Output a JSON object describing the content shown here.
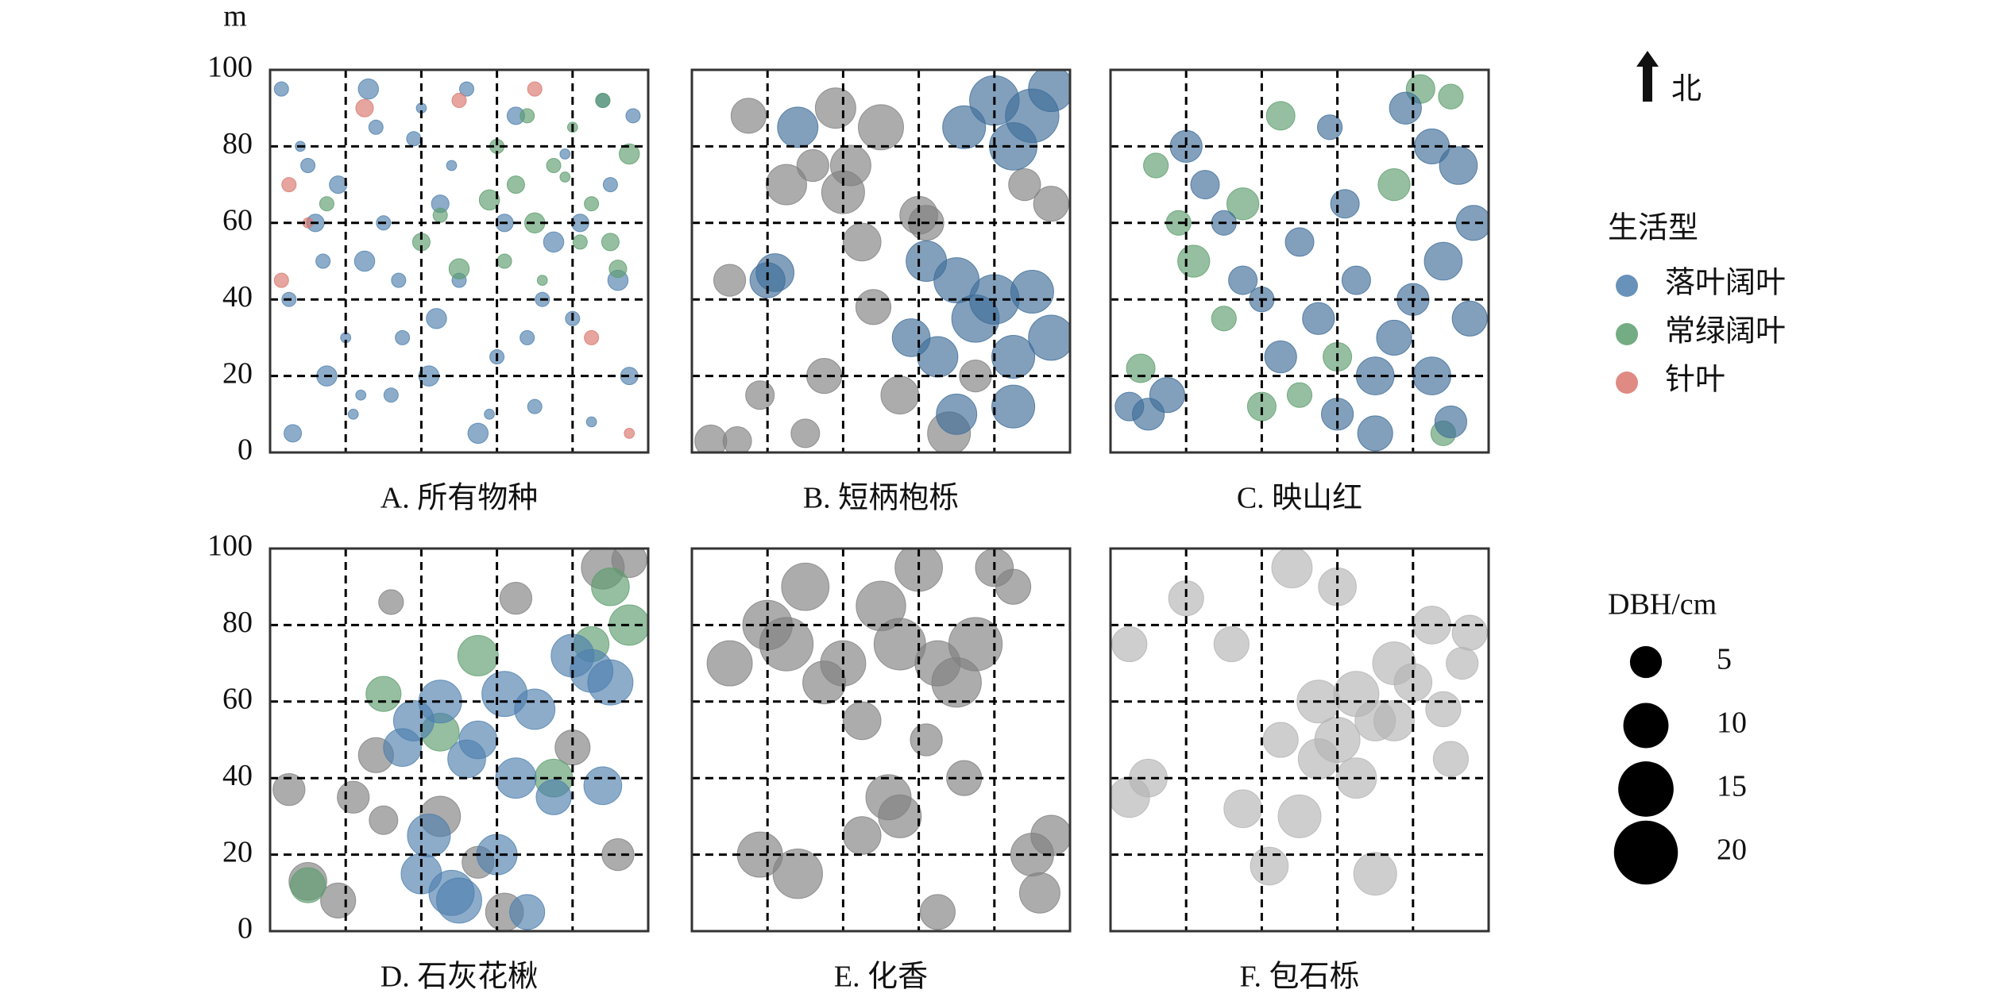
{
  "chart_data": [
    {
      "type": "scatter",
      "title": "A. 所有物种",
      "ylabel": "m",
      "xlim": [
        0,
        100
      ],
      "ylim": [
        0,
        100
      ],
      "xticks": [
        0,
        20,
        40,
        60,
        80,
        100
      ],
      "yticks": [
        0,
        20,
        40,
        60,
        80,
        100
      ],
      "ytick_labels": true,
      "grid": true,
      "series": [
        {
          "name": "落叶阔叶",
          "color": "#4e7fae",
          "x": [
            3,
            8,
            12,
            5,
            15,
            22,
            28,
            18,
            25,
            35,
            40,
            32,
            45,
            50,
            55,
            48,
            60,
            65,
            70,
            75,
            80,
            85,
            90,
            95,
            92,
            88,
            78,
            72,
            62,
            52,
            42,
            30,
            20,
            10,
            6,
            14,
            26,
            38,
            58,
            68,
            82,
            96,
            44,
            34,
            24
          ],
          "y": [
            95,
            80,
            60,
            40,
            20,
            10,
            85,
            70,
            50,
            30,
            90,
            15,
            65,
            45,
            5,
            75,
            25,
            88,
            12,
            55,
            35,
            8,
            70,
            20,
            45,
            92,
            78,
            40,
            60,
            95,
            20,
            60,
            30,
            75,
            5,
            50,
            95,
            82,
            10,
            30,
            60,
            88,
            35,
            45,
            15
          ],
          "size": [
            1,
            0.5,
            1.5,
            1,
            2,
            0.5,
            1,
            1.5,
            2,
            1,
            0.5,
            1,
            1.5,
            1,
            2,
            0.5,
            1,
            1.5,
            1,
            2,
            1,
            0.5,
            1,
            1.5,
            2,
            1,
            0.5,
            1,
            1.5,
            1,
            2,
            1,
            0.5,
            1,
            1.5,
            1,
            2,
            1,
            0.5,
            1,
            1.5,
            1,
            2,
            1,
            0.5
          ]
        },
        {
          "name": "常绿阔叶",
          "color": "#5c9d6d",
          "x": [
            60,
            65,
            70,
            75,
            80,
            85,
            90,
            95,
            62,
            72,
            82,
            92,
            58,
            68,
            78,
            88,
            40,
            45,
            50,
            15
          ],
          "y": [
            80,
            70,
            60,
            75,
            85,
            65,
            55,
            78,
            50,
            45,
            55,
            48,
            66,
            88,
            72,
            92,
            55,
            62,
            48,
            65
          ],
          "size": [
            1,
            1.5,
            2,
            1,
            0.5,
            1,
            1.5,
            2,
            1,
            0.5,
            1,
            1.5,
            2,
            1,
            0.5,
            1,
            1.5,
            1,
            2,
            1
          ]
        },
        {
          "name": "针叶",
          "color": "#d9756c",
          "x": [
            5,
            10,
            3,
            25,
            85,
            95,
            50,
            70
          ],
          "y": [
            70,
            60,
            45,
            90,
            30,
            5,
            92,
            95
          ],
          "size": [
            1,
            0.5,
            1,
            1.5,
            1,
            0.5,
            1,
            1
          ]
        }
      ]
    },
    {
      "type": "scatter",
      "title": "B. 短柄枹栎",
      "xlim": [
        0,
        100
      ],
      "ylim": [
        0,
        100
      ],
      "xticks": [
        0,
        20,
        40,
        60,
        80,
        100
      ],
      "yticks": [
        0,
        20,
        40,
        60,
        80,
        100
      ],
      "ytick_labels": false,
      "grid": true,
      "series": [
        {
          "color": "#808080",
          "x": [
            15,
            25,
            32,
            40,
            45,
            50,
            62,
            38,
            10,
            18,
            35,
            55,
            68,
            75,
            48,
            30,
            60,
            5,
            12,
            42,
            95,
            88
          ],
          "y": [
            88,
            70,
            75,
            68,
            55,
            85,
            60,
            90,
            45,
            15,
            20,
            15,
            5,
            20,
            38,
            5,
            62,
            3,
            3,
            75,
            65,
            70
          ],
          "size": [
            6,
            8,
            5,
            9,
            7,
            10,
            6,
            8,
            5,
            4,
            6,
            7,
            9,
            5,
            6,
            4,
            7,
            5,
            4,
            8,
            6,
            5
          ]
        },
        {
          "color": "#3f6d98",
          "x": [
            80,
            90,
            95,
            72,
            85,
            62,
            70,
            80,
            90,
            58,
            65,
            75,
            85,
            95,
            70,
            85,
            22,
            28,
            20
          ],
          "y": [
            92,
            88,
            95,
            85,
            80,
            50,
            45,
            40,
            42,
            30,
            25,
            35,
            25,
            30,
            10,
            12,
            47,
            85,
            45
          ],
          "size": [
            12,
            14,
            10,
            9,
            11,
            8,
            10,
            12,
            9,
            7,
            8,
            11,
            9,
            10,
            8,
            9,
            7,
            8,
            6
          ]
        }
      ]
    },
    {
      "type": "scatter",
      "title": "C. 映山红",
      "xlim": [
        0,
        100
      ],
      "ylim": [
        0,
        100
      ],
      "xticks": [
        0,
        20,
        40,
        60,
        80,
        100
      ],
      "yticks": [
        0,
        20,
        40,
        60,
        80,
        100
      ],
      "ytick_labels": false,
      "grid": true,
      "series": [
        {
          "color": "#5c9d6d",
          "x": [
            82,
            90,
            75,
            50,
            40,
            18,
            22,
            8,
            30,
            60,
            88,
            35,
            45,
            12
          ],
          "y": [
            95,
            93,
            70,
            15,
            12,
            60,
            50,
            22,
            35,
            25,
            5,
            65,
            88,
            75
          ],
          "size": [
            4,
            3,
            5,
            3,
            4,
            3,
            5,
            4,
            3,
            4,
            3,
            5,
            4,
            3
          ]
        },
        {
          "color": "#3f6d98",
          "x": [
            78,
            85,
            92,
            96,
            88,
            80,
            75,
            70,
            60,
            65,
            55,
            50,
            45,
            40,
            25,
            20,
            15,
            10,
            5,
            30,
            35,
            85,
            95,
            90,
            62,
            58,
            70
          ],
          "y": [
            90,
            80,
            75,
            60,
            50,
            40,
            30,
            20,
            10,
            45,
            35,
            55,
            25,
            40,
            70,
            80,
            15,
            10,
            12,
            60,
            45,
            20,
            35,
            8,
            65,
            85,
            5
          ],
          "size": [
            5,
            6,
            7,
            6,
            7,
            5,
            6,
            7,
            5,
            4,
            5,
            4,
            5,
            3,
            4,
            5,
            6,
            5,
            4,
            3,
            4,
            7,
            6,
            5,
            4,
            3,
            6
          ]
        }
      ]
    },
    {
      "type": "scatter",
      "title": "D. 石灰花楸",
      "xlim": [
        0,
        100
      ],
      "ylim": [
        0,
        100
      ],
      "xticks": [
        0,
        20,
        40,
        60,
        80,
        100
      ],
      "yticks": [
        0,
        20,
        40,
        60,
        80,
        100
      ],
      "ytick_labels": true,
      "grid": true,
      "series": [
        {
          "color": "#808080",
          "x": [
            5,
            28,
            22,
            30,
            32,
            65,
            95,
            10,
            18,
            45,
            55,
            80,
            92,
            62,
            88
          ],
          "y": [
            37,
            46,
            35,
            29,
            86,
            87,
            97,
            13,
            8,
            30,
            18,
            48,
            20,
            5,
            95
          ],
          "size": [
            5,
            6,
            5,
            4,
            3,
            5,
            6,
            7,
            6,
            8,
            5,
            6,
            5,
            7,
            9
          ]
        },
        {
          "color": "#5c9d6d",
          "x": [
            30,
            90,
            95,
            85,
            75,
            10,
            55,
            45
          ],
          "y": [
            62,
            90,
            80,
            75,
            40,
            12,
            72,
            52
          ],
          "size": [
            6,
            7,
            8,
            6,
            7,
            6,
            8,
            7
          ]
        },
        {
          "color": "#4e7fae",
          "x": [
            38,
            45,
            55,
            62,
            70,
            80,
            90,
            52,
            65,
            75,
            42,
            48,
            35,
            60,
            68,
            85,
            40,
            50,
            88
          ],
          "y": [
            55,
            60,
            50,
            62,
            58,
            72,
            65,
            45,
            40,
            35,
            25,
            10,
            48,
            20,
            5,
            68,
            15,
            8,
            38
          ],
          "size": [
            8,
            9,
            7,
            10,
            8,
            9,
            10,
            7,
            8,
            6,
            9,
            10,
            7,
            8,
            6,
            9,
            8,
            10,
            7
          ]
        }
      ]
    },
    {
      "type": "scatter",
      "title": "E. 化香",
      "xlim": [
        0,
        100
      ],
      "ylim": [
        0,
        100
      ],
      "xticks": [
        0,
        20,
        40,
        60,
        80,
        100
      ],
      "yticks": [
        0,
        20,
        40,
        60,
        80,
        100
      ],
      "ytick_labels": false,
      "grid": true,
      "series": [
        {
          "color": "#808080",
          "x": [
            10,
            20,
            25,
            30,
            35,
            40,
            50,
            55,
            60,
            65,
            70,
            75,
            85,
            90,
            95,
            45,
            18,
            28,
            62,
            72,
            65,
            80,
            92,
            55,
            52,
            45
          ],
          "y": [
            70,
            80,
            75,
            90,
            65,
            70,
            85,
            75,
            95,
            70,
            65,
            75,
            90,
            20,
            25,
            55,
            20,
            15,
            50,
            40,
            5,
            95,
            10,
            30,
            35,
            25
          ],
          "size": [
            10,
            12,
            14,
            11,
            9,
            10,
            12,
            13,
            11,
            10,
            12,
            14,
            6,
            9,
            8,
            7,
            10,
            12,
            5,
            6,
            6,
            7,
            8,
            9,
            10,
            7
          ]
        }
      ]
    },
    {
      "type": "scatter",
      "title": "F. 包石栎",
      "xlim": [
        0,
        100
      ],
      "ylim": [
        0,
        100
      ],
      "xticks": [
        0,
        20,
        40,
        60,
        80,
        100
      ],
      "yticks": [
        0,
        20,
        40,
        60,
        80,
        100
      ],
      "ytick_labels": false,
      "grid": true,
      "series": [
        {
          "color": "#b3b3b3",
          "x": [
            20,
            10,
            32,
            48,
            55,
            60,
            70,
            80,
            95,
            5,
            5,
            35,
            45,
            50,
            65,
            85,
            90,
            55,
            60,
            75,
            88,
            65,
            42,
            75,
            70,
            93
          ],
          "y": [
            87,
            40,
            75,
            95,
            60,
            50,
            55,
            65,
            78,
            75,
            35,
            32,
            50,
            30,
            62,
            80,
            45,
            45,
            90,
            70,
            58,
            40,
            17,
            55,
            15,
            70
          ],
          "size": [
            6,
            7,
            6,
            8,
            9,
            10,
            8,
            7,
            6,
            6,
            8,
            7,
            6,
            9,
            10,
            7,
            6,
            8,
            7,
            9,
            6,
            8,
            7,
            8,
            9,
            5
          ]
        }
      ]
    }
  ],
  "north_label": "北",
  "legend_title": "生活型",
  "size_legend": {
    "title": "DBH/cm",
    "values": [
      5,
      10,
      15,
      20
    ]
  }
}
